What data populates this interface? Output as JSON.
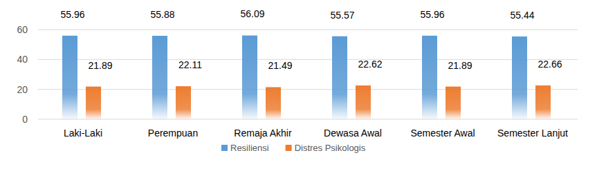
{
  "chart_data": {
    "type": "bar",
    "categories": [
      "Laki-Laki",
      "Perempuan",
      "Remaja Akhir",
      "Dewasa Awal",
      "Semester Awal",
      "Semester Lanjut"
    ],
    "series": [
      {
        "name": "Resiliensi",
        "color": "#5b9bd5",
        "values": [
          55.96,
          55.88,
          56.09,
          55.57,
          55.96,
          55.44
        ]
      },
      {
        "name": "Distres Psikologis",
        "color": "#ed7d31",
        "values": [
          21.89,
          22.11,
          21.49,
          22.62,
          21.89,
          22.66
        ]
      }
    ],
    "ylim": [
      0,
      60
    ],
    "yticks": [
      0,
      20,
      40,
      60
    ],
    "grid": true,
    "legend": "bottom",
    "data_labels": true
  }
}
